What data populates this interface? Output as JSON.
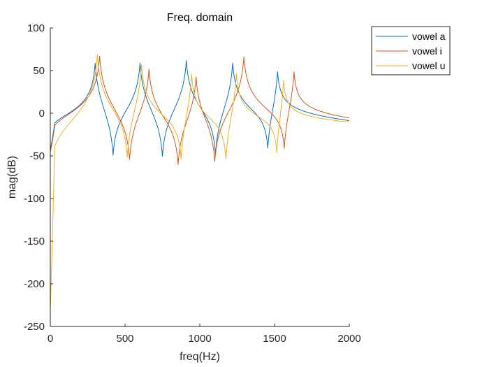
{
  "chart_data": {
    "type": "line",
    "title": "Freq. domain",
    "xlabel": "freq(Hz)",
    "ylabel": "mag(dB)",
    "xlim": [
      0,
      2000
    ],
    "ylim": [
      -250,
      100
    ],
    "xticks": [
      0,
      500,
      1000,
      1500,
      2000
    ],
    "yticks": [
      100,
      50,
      0,
      -50,
      -100,
      -150,
      -200,
      -250
    ],
    "grid": false,
    "legend_position": "outside-top-right",
    "series": [
      {
        "name": "vowel a",
        "color": "#0072BD",
        "resonances": [
          300,
          600,
          910,
          1220,
          1520
        ],
        "peaks": [
          63,
          60,
          59,
          55,
          49
        ],
        "antiresonances": [
          420,
          750,
          1105,
          1455
        ],
        "notches": [
          -55,
          -47,
          -45,
          -45
        ],
        "start": -42,
        "end": -4
      },
      {
        "name": "vowel i",
        "color": "#D95319",
        "resonances": [
          330,
          660,
          975,
          1295,
          1630
        ],
        "peaks": [
          67,
          56,
          50,
          58,
          47
        ],
        "antiresonances": [
          530,
          855,
          1100,
          1565
        ],
        "notches": [
          -63,
          -57,
          -50,
          -45
        ],
        "start": -45,
        "end": -4
      },
      {
        "name": "vowel u",
        "color": "#EDB120",
        "resonances": [
          315,
          610,
          945,
          1245,
          1560
        ],
        "peaks": [
          68,
          55,
          48,
          46,
          40
        ],
        "antiresonances": [
          515,
          875,
          1175,
          1515
        ],
        "notches": [
          -52,
          -49,
          -53,
          -53
        ],
        "start": -230,
        "end": -9
      }
    ]
  }
}
